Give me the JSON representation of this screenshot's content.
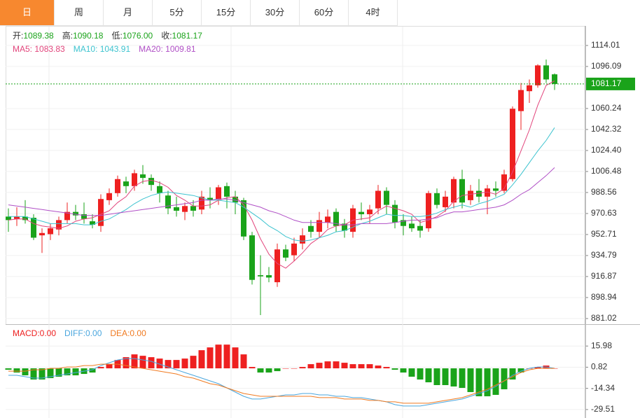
{
  "tabs": [
    "日",
    "周",
    "月",
    "5分",
    "15分",
    "30分",
    "60分",
    "4时"
  ],
  "active_tab": 0,
  "chart_data": [
    {
      "type": "candlestick",
      "ohlc_legend": [
        {
          "label": "开:",
          "value": "1089.38"
        },
        {
          "label": "高:",
          "value": "1090.18"
        },
        {
          "label": "低:",
          "value": "1076.00"
        },
        {
          "label": "收:",
          "value": "1081.17"
        }
      ],
      "legend_value_color": "#1aa31a",
      "up_color": "#ee2020",
      "down_color": "#1aa31a",
      "open": [
        968,
        966,
        968,
        967,
        952,
        953,
        957,
        965,
        972,
        970,
        964,
        960,
        982,
        988,
        998,
        994,
        1004,
        1001,
        994,
        986,
        976,
        972,
        977,
        974,
        984,
        983,
        994,
        985,
        982,
        952,
        918,
        918,
        912,
        940,
        935,
        945,
        960,
        955,
        963,
        972,
        962,
        955,
        972,
        970,
        975,
        990,
        978,
        965,
        962,
        960,
        958,
        988,
        976,
        980,
        1000,
        982,
        990,
        985,
        992,
        990,
        1000,
        1058,
        1075,
        1080,
        1097,
        1089.38
      ],
      "high": [
        975,
        976,
        982,
        970,
        958,
        962,
        968,
        980,
        978,
        980,
        970,
        987,
        992,
        1003,
        1002,
        1008,
        1012,
        1004,
        998,
        990,
        985,
        980,
        982,
        990,
        993,
        995,
        997,
        990,
        984,
        955,
        935,
        925,
        945,
        944,
        950,
        958,
        965,
        972,
        974,
        975,
        966,
        978,
        980,
        978,
        995,
        993,
        982,
        970,
        968,
        965,
        990,
        992,
        990,
        1002,
        1008,
        995,
        1000,
        995,
        998,
        1008,
        1062,
        1082,
        1085,
        1098,
        1102,
        1090.18
      ],
      "low": [
        955,
        960,
        962,
        948,
        937,
        948,
        952,
        962,
        965,
        962,
        958,
        955,
        978,
        985,
        988,
        990,
        996,
        990,
        980,
        970,
        968,
        965,
        968,
        970,
        975,
        978,
        975,
        970,
        948,
        910,
        884,
        912,
        908,
        930,
        930,
        940,
        950,
        950,
        958,
        955,
        950,
        950,
        965,
        962,
        970,
        970,
        958,
        952,
        955,
        950,
        955,
        975,
        972,
        975,
        975,
        978,
        980,
        970,
        985,
        988,
        998,
        1042,
        1065,
        1078,
        1082,
        1076
      ],
      "close": [
        965,
        968,
        965,
        950,
        954,
        958,
        965,
        972,
        969,
        966,
        961,
        983,
        988,
        1000,
        994,
        1005,
        1001,
        995,
        988,
        975,
        973,
        977,
        973,
        985,
        982,
        993,
        985,
        980,
        951,
        914,
        917,
        916,
        940,
        933,
        945,
        952,
        955,
        965,
        968,
        960,
        956,
        975,
        970,
        974,
        990,
        978,
        963,
        960,
        958,
        956,
        988,
        978,
        985,
        1000,
        980,
        990,
        985,
        992,
        990,
        1004,
        1060,
        1076,
        1080,
        1097,
        1085,
        1081.17
      ],
      "ma": [
        {
          "label": "MA5: 1083.83",
          "color": "#e2457c",
          "values": [
            965,
            966,
            966,
            962,
            960,
            959,
            958,
            960,
            964,
            966,
            967,
            970,
            973,
            980,
            985,
            994,
            998,
            999,
            997,
            993,
            986,
            982,
            977,
            977,
            978,
            982,
            984,
            985,
            978,
            965,
            949,
            936,
            928,
            924,
            930,
            937,
            945,
            950,
            957,
            960,
            961,
            965,
            966,
            967,
            973,
            977,
            975,
            973,
            970,
            963,
            965,
            968,
            973,
            981,
            986,
            987,
            988,
            989,
            987,
            992,
            1006,
            1024,
            1042,
            1063,
            1080,
            1083.83
          ]
        },
        {
          "label": "MA10: 1043.91",
          "color": "#3cc3cf",
          "values": [
            968,
            968,
            968,
            966,
            964,
            962,
            962,
            962,
            962,
            961,
            961,
            964,
            966,
            970,
            974,
            979,
            983,
            986,
            988,
            989,
            988,
            987,
            986,
            984,
            982,
            982,
            981,
            980,
            976,
            971,
            966,
            960,
            956,
            951,
            948,
            947,
            948,
            950,
            952,
            955,
            956,
            959,
            962,
            964,
            967,
            970,
            969,
            969,
            968,
            968,
            969,
            971,
            974,
            976,
            978,
            976,
            979,
            981,
            984,
            987,
            995,
            1004,
            1014,
            1024,
            1033,
            1043.91
          ]
        },
        {
          "label": "MA20: 1009.81",
          "color": "#b04fc6",
          "values": [
            978,
            977,
            976,
            975,
            974,
            973,
            972,
            971,
            970,
            969,
            969,
            969,
            970,
            971,
            972,
            973,
            974,
            975,
            976,
            977,
            978,
            979,
            980,
            982,
            982,
            983,
            983,
            982,
            980,
            978,
            976,
            973,
            971,
            968,
            965,
            963,
            963,
            963,
            963,
            962,
            961,
            961,
            962,
            962,
            962,
            962,
            963,
            964,
            965,
            965,
            966,
            967,
            970,
            972,
            972,
            973,
            974,
            975,
            976,
            978,
            982,
            987,
            991,
            997,
            1003,
            1009.81
          ]
        }
      ],
      "last_price": 1081.17,
      "last_price_color": "#1aa31a",
      "ylim": [
        876.8,
        1130.1
      ],
      "yticks": [
        1114.01,
        1096.09,
        1060.24,
        1042.32,
        {
          "value": 1024.4,
          "label": "1024.40"
        },
        1006.48,
        988.56,
        970.63,
        952.71,
        934.79,
        916.87,
        898.94,
        881.02
      ],
      "grid": true
    },
    {
      "type": "macd",
      "legend": [
        {
          "label": "MACD:0.00",
          "color": "#ee2020"
        },
        {
          "label": "DIFF:0.00",
          "color": "#4aa6de"
        },
        {
          "label": "DEA:0.00",
          "color": "#f07a20"
        }
      ],
      "histogram": [
        -1,
        -3,
        -5,
        -8,
        -8,
        -7,
        -6,
        -5,
        -5,
        -4,
        -3,
        1,
        3,
        6,
        8,
        10,
        9,
        8,
        7,
        6,
        6,
        7,
        9,
        13,
        15,
        17,
        17,
        15,
        10,
        1,
        -3,
        -3,
        -2,
        0,
        0,
        1,
        3,
        4,
        5,
        5,
        4,
        3,
        3,
        3,
        2,
        1,
        -1,
        -3,
        -6,
        -8,
        -10,
        -12,
        -12,
        -13,
        -14,
        -17,
        -20,
        -20,
        -19,
        -15,
        -8,
        -3,
        0,
        1,
        2,
        0
      ],
      "up_color": "#ee2020",
      "down_color": "#1aa31a",
      "series": [
        {
          "color": "#4aa6de",
          "values": [
            -5,
            -5,
            -6,
            -7,
            -7,
            -6,
            -5,
            -4,
            -3,
            -2,
            -1,
            2,
            4,
            6,
            7,
            7,
            6,
            5,
            3,
            1,
            -1,
            -3,
            -5,
            -7,
            -9,
            -11,
            -14,
            -17,
            -20,
            -22,
            -22,
            -21,
            -20,
            -19,
            -19,
            -18,
            -18,
            -19,
            -19,
            -20,
            -20,
            -21,
            -21,
            -22,
            -23,
            -24,
            -26,
            -27,
            -27,
            -27,
            -26,
            -25,
            -24,
            -23,
            -22,
            -20,
            -18,
            -16,
            -13,
            -9,
            -5,
            -2,
            0,
            1,
            1,
            0
          ]
        },
        {
          "color": "#f07a20",
          "values": [
            -2,
            -2,
            -2,
            -1,
            -1,
            0,
            0,
            1,
            1,
            2,
            2,
            3,
            3,
            3,
            2,
            1,
            0,
            -1,
            -2,
            -3,
            -4,
            -6,
            -7,
            -9,
            -11,
            -12,
            -14,
            -16,
            -18,
            -19,
            -20,
            -20,
            -20,
            -20,
            -20,
            -20,
            -20,
            -21,
            -21,
            -21,
            -22,
            -22,
            -22,
            -23,
            -23,
            -24,
            -24,
            -25,
            -25,
            -25,
            -25,
            -24,
            -23,
            -22,
            -21,
            -19,
            -17,
            -15,
            -12,
            -9,
            -6,
            -3,
            -1,
            0,
            0,
            0
          ]
        }
      ],
      "ylim": [
        -35.57,
        30.13
      ],
      "yticks": [
        15.98,
        0.82,
        -14.34,
        -29.51
      ],
      "grid": true
    }
  ]
}
